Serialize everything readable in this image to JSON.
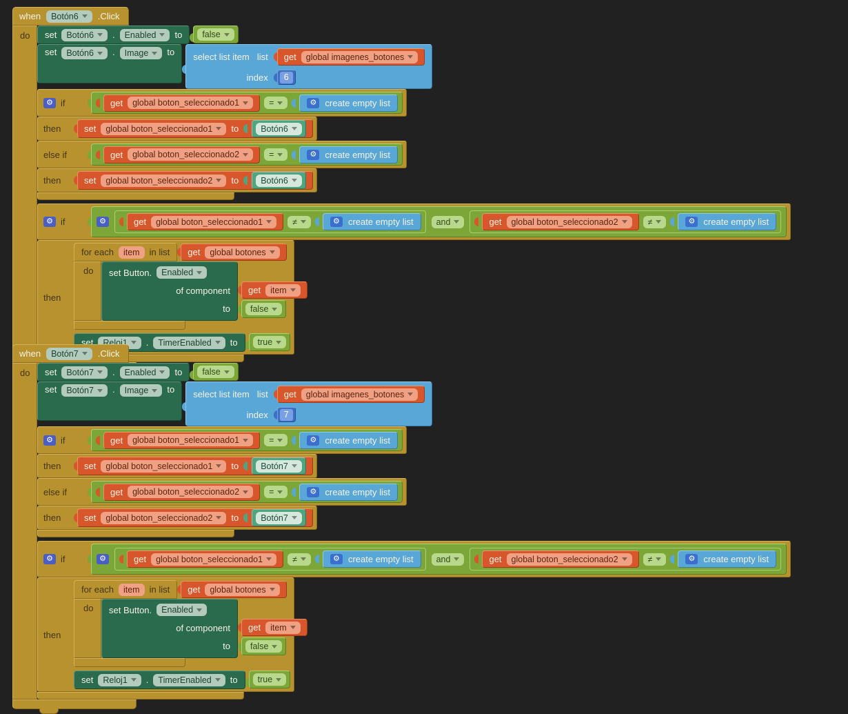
{
  "canvas": {
    "background": "#212121"
  },
  "palette": {
    "event_gold": "#b7922f",
    "setter_green": "#2a6b4d",
    "logic_green": "#7da639",
    "logic_chip_green": "#b8d98c",
    "list_blue": "#58a7d7",
    "variable_orange": "#d8562b",
    "variable_chip_salmon": "#f0a183",
    "math_blue": "#3b70c2",
    "component_teal": "#4fa580",
    "gear_badge_blue": "#4a5fc4",
    "mutator_icon": "gear-icon",
    "dropdown_icon": "chevron-down-icon"
  },
  "blocks": [
    {
      "event": {
        "when_label": "when",
        "component": "Botón6",
        "click_label": ".Click",
        "do_label": "do"
      },
      "set_enabled": {
        "set_label": "set",
        "component": "Botón6",
        "dot": ".",
        "property": "Enabled",
        "to_label": "to",
        "value": "false"
      },
      "set_image": {
        "set_label": "set",
        "component": "Botón6",
        "dot": ".",
        "property": "Image",
        "to_label": "to"
      },
      "select": {
        "title": "select list item",
        "list_label": "list",
        "get_label": "get",
        "images_var": "global imagenes_botones",
        "index_label": "index",
        "index_value": "6"
      },
      "if1": {
        "if_label": "if",
        "then1_label": "then",
        "elseif_label": "else if",
        "then2_label": "then",
        "c1": {
          "get_label": "get",
          "var": "global boton_seleccionado1",
          "op": "=",
          "empty_label": "create empty list"
        },
        "s1": {
          "set_label": "set",
          "var": "global boton_seleccionado1",
          "to_label": "to",
          "value": "Botón6"
        },
        "c2": {
          "get_label": "get",
          "var": "global boton_seleccionado2",
          "op": "=",
          "empty_label": "create empty list"
        },
        "s2": {
          "set_label": "set",
          "var": "global boton_seleccionado2",
          "to_label": "to",
          "value": "Botón6"
        }
      },
      "if2": {
        "if_label": "if",
        "then_label": "then",
        "and_label": "and",
        "c1": {
          "get_label": "get",
          "var": "global boton_seleccionado1",
          "op": "≠",
          "empty_label": "create empty list"
        },
        "c2": {
          "get_label": "get",
          "var": "global boton_seleccionado2",
          "op": "≠",
          "empty_label": "create empty list"
        },
        "foreach": {
          "for_label": "for each",
          "item_label": "item",
          "inlist_label": "in list",
          "get_label": "get",
          "var": "global botones",
          "do_label": "do"
        },
        "setbtn": {
          "title": "set Button.",
          "property": "Enabled",
          "ofcomp_label": "of component",
          "get_label": "get",
          "item": "item",
          "to_label": "to",
          "value": "false"
        },
        "timer": {
          "set_label": "set",
          "component": "Reloj1",
          "dot": ".",
          "property": "TimerEnabled",
          "to_label": "to",
          "value": "true"
        }
      }
    },
    {
      "event": {
        "when_label": "when",
        "component": "Botón7",
        "click_label": ".Click",
        "do_label": "do"
      },
      "set_enabled": {
        "set_label": "set",
        "component": "Botón7",
        "dot": ".",
        "property": "Enabled",
        "to_label": "to",
        "value": "false"
      },
      "set_image": {
        "set_label": "set",
        "component": "Botón7",
        "dot": ".",
        "property": "Image",
        "to_label": "to"
      },
      "select": {
        "title": "select list item",
        "list_label": "list",
        "get_label": "get",
        "images_var": "global imagenes_botones",
        "index_label": "index",
        "index_value": "7"
      },
      "if1": {
        "if_label": "if",
        "then1_label": "then",
        "elseif_label": "else if",
        "then2_label": "then",
        "c1": {
          "get_label": "get",
          "var": "global boton_seleccionado1",
          "op": "=",
          "empty_label": "create empty list"
        },
        "s1": {
          "set_label": "set",
          "var": "global boton_seleccionado1",
          "to_label": "to",
          "value": "Botón7"
        },
        "c2": {
          "get_label": "get",
          "var": "global boton_seleccionado2",
          "op": "=",
          "empty_label": "create empty list"
        },
        "s2": {
          "set_label": "set",
          "var": "global boton_seleccionado2",
          "to_label": "to",
          "value": "Botón7"
        }
      },
      "if2": {
        "if_label": "if",
        "then_label": "then",
        "and_label": "and",
        "c1": {
          "get_label": "get",
          "var": "global boton_seleccionado1",
          "op": "≠",
          "empty_label": "create empty list"
        },
        "c2": {
          "get_label": "get",
          "var": "global boton_seleccionado2",
          "op": "≠",
          "empty_label": "create empty list"
        },
        "foreach": {
          "for_label": "for each",
          "item_label": "item",
          "inlist_label": "in list",
          "get_label": "get",
          "var": "global botones",
          "do_label": "do"
        },
        "setbtn": {
          "title": "set Button.",
          "property": "Enabled",
          "ofcomp_label": "of component",
          "get_label": "get",
          "item": "item",
          "to_label": "to",
          "value": "false"
        },
        "timer": {
          "set_label": "set",
          "component": "Reloj1",
          "dot": ".",
          "property": "TimerEnabled",
          "to_label": "to",
          "value": "true"
        }
      }
    }
  ]
}
